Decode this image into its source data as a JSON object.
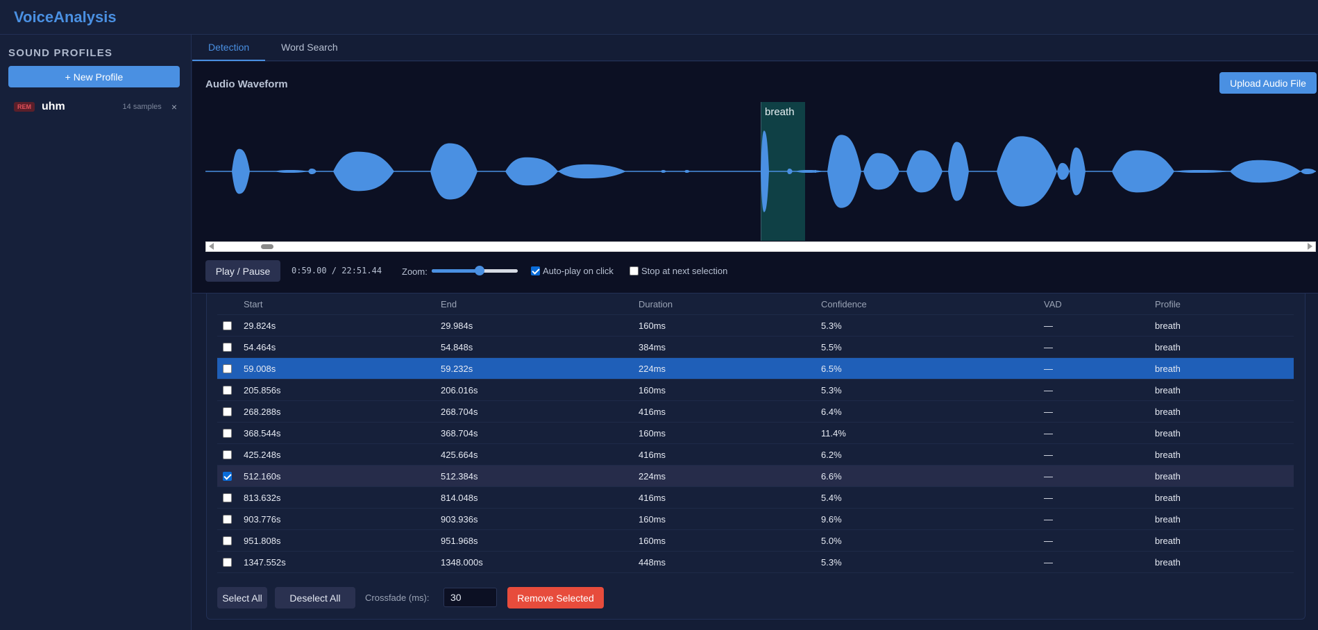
{
  "app": {
    "title": "VoiceAnalysis"
  },
  "sidebar": {
    "heading": "SOUND PROFILES",
    "new_profile_label": "+ New Profile",
    "profiles": [
      {
        "badge": "REM",
        "name": "uhm",
        "samples": "14 samples",
        "close": "×"
      }
    ]
  },
  "tabs": [
    {
      "label": "Detection",
      "active": true
    },
    {
      "label": "Word Search",
      "active": false
    }
  ],
  "waveform": {
    "title": "Audio Waveform",
    "upload_label": "Upload Audio File",
    "region_label": "breath",
    "wave_color": "#4a90e2",
    "region_color": "#0f4045",
    "play_label": "Play / Pause",
    "time": "0:59.00 / 22:51.44",
    "zoom_label": "Zoom:",
    "zoom_level": 0.56,
    "autoplay_label": "Auto-play on click",
    "autoplay_checked": true,
    "stop_label": "Stop at next selection",
    "stop_checked": false
  },
  "table": {
    "headers": {
      "start": "Start",
      "end": "End",
      "duration": "Duration",
      "confidence": "Confidence",
      "vad": "VAD",
      "profile": "Profile"
    },
    "rows": [
      {
        "start": "29.824s",
        "end": "29.984s",
        "duration": "160ms",
        "confidence": "5.3%",
        "vad": "—",
        "profile": "breath",
        "checked": false,
        "active": false
      },
      {
        "start": "54.464s",
        "end": "54.848s",
        "duration": "384ms",
        "confidence": "5.5%",
        "vad": "—",
        "profile": "breath",
        "checked": false,
        "active": false
      },
      {
        "start": "59.008s",
        "end": "59.232s",
        "duration": "224ms",
        "confidence": "6.5%",
        "vad": "—",
        "profile": "breath",
        "checked": false,
        "active": true
      },
      {
        "start": "205.856s",
        "end": "206.016s",
        "duration": "160ms",
        "confidence": "5.3%",
        "vad": "—",
        "profile": "breath",
        "checked": false,
        "active": false
      },
      {
        "start": "268.288s",
        "end": "268.704s",
        "duration": "416ms",
        "confidence": "6.4%",
        "vad": "—",
        "profile": "breath",
        "checked": false,
        "active": false
      },
      {
        "start": "368.544s",
        "end": "368.704s",
        "duration": "160ms",
        "confidence": "11.4%",
        "vad": "—",
        "profile": "breath",
        "checked": false,
        "active": false
      },
      {
        "start": "425.248s",
        "end": "425.664s",
        "duration": "416ms",
        "confidence": "6.2%",
        "vad": "—",
        "profile": "breath",
        "checked": false,
        "active": false
      },
      {
        "start": "512.160s",
        "end": "512.384s",
        "duration": "224ms",
        "confidence": "6.6%",
        "vad": "—",
        "profile": "breath",
        "checked": true,
        "active": false
      },
      {
        "start": "813.632s",
        "end": "814.048s",
        "duration": "416ms",
        "confidence": "5.4%",
        "vad": "—",
        "profile": "breath",
        "checked": false,
        "active": false
      },
      {
        "start": "903.776s",
        "end": "903.936s",
        "duration": "160ms",
        "confidence": "9.6%",
        "vad": "—",
        "profile": "breath",
        "checked": false,
        "active": false
      },
      {
        "start": "951.808s",
        "end": "951.968s",
        "duration": "160ms",
        "confidence": "5.0%",
        "vad": "—",
        "profile": "breath",
        "checked": false,
        "active": false
      },
      {
        "start": "1347.552s",
        "end": "1348.000s",
        "duration": "448ms",
        "confidence": "5.3%",
        "vad": "—",
        "profile": "breath",
        "checked": false,
        "active": false
      }
    ]
  },
  "actions": {
    "select_all": "Select All",
    "deselect_all": "Deselect All",
    "crossfade_label": "Crossfade (ms):",
    "crossfade_value": "30",
    "remove_selected": "Remove Selected"
  }
}
